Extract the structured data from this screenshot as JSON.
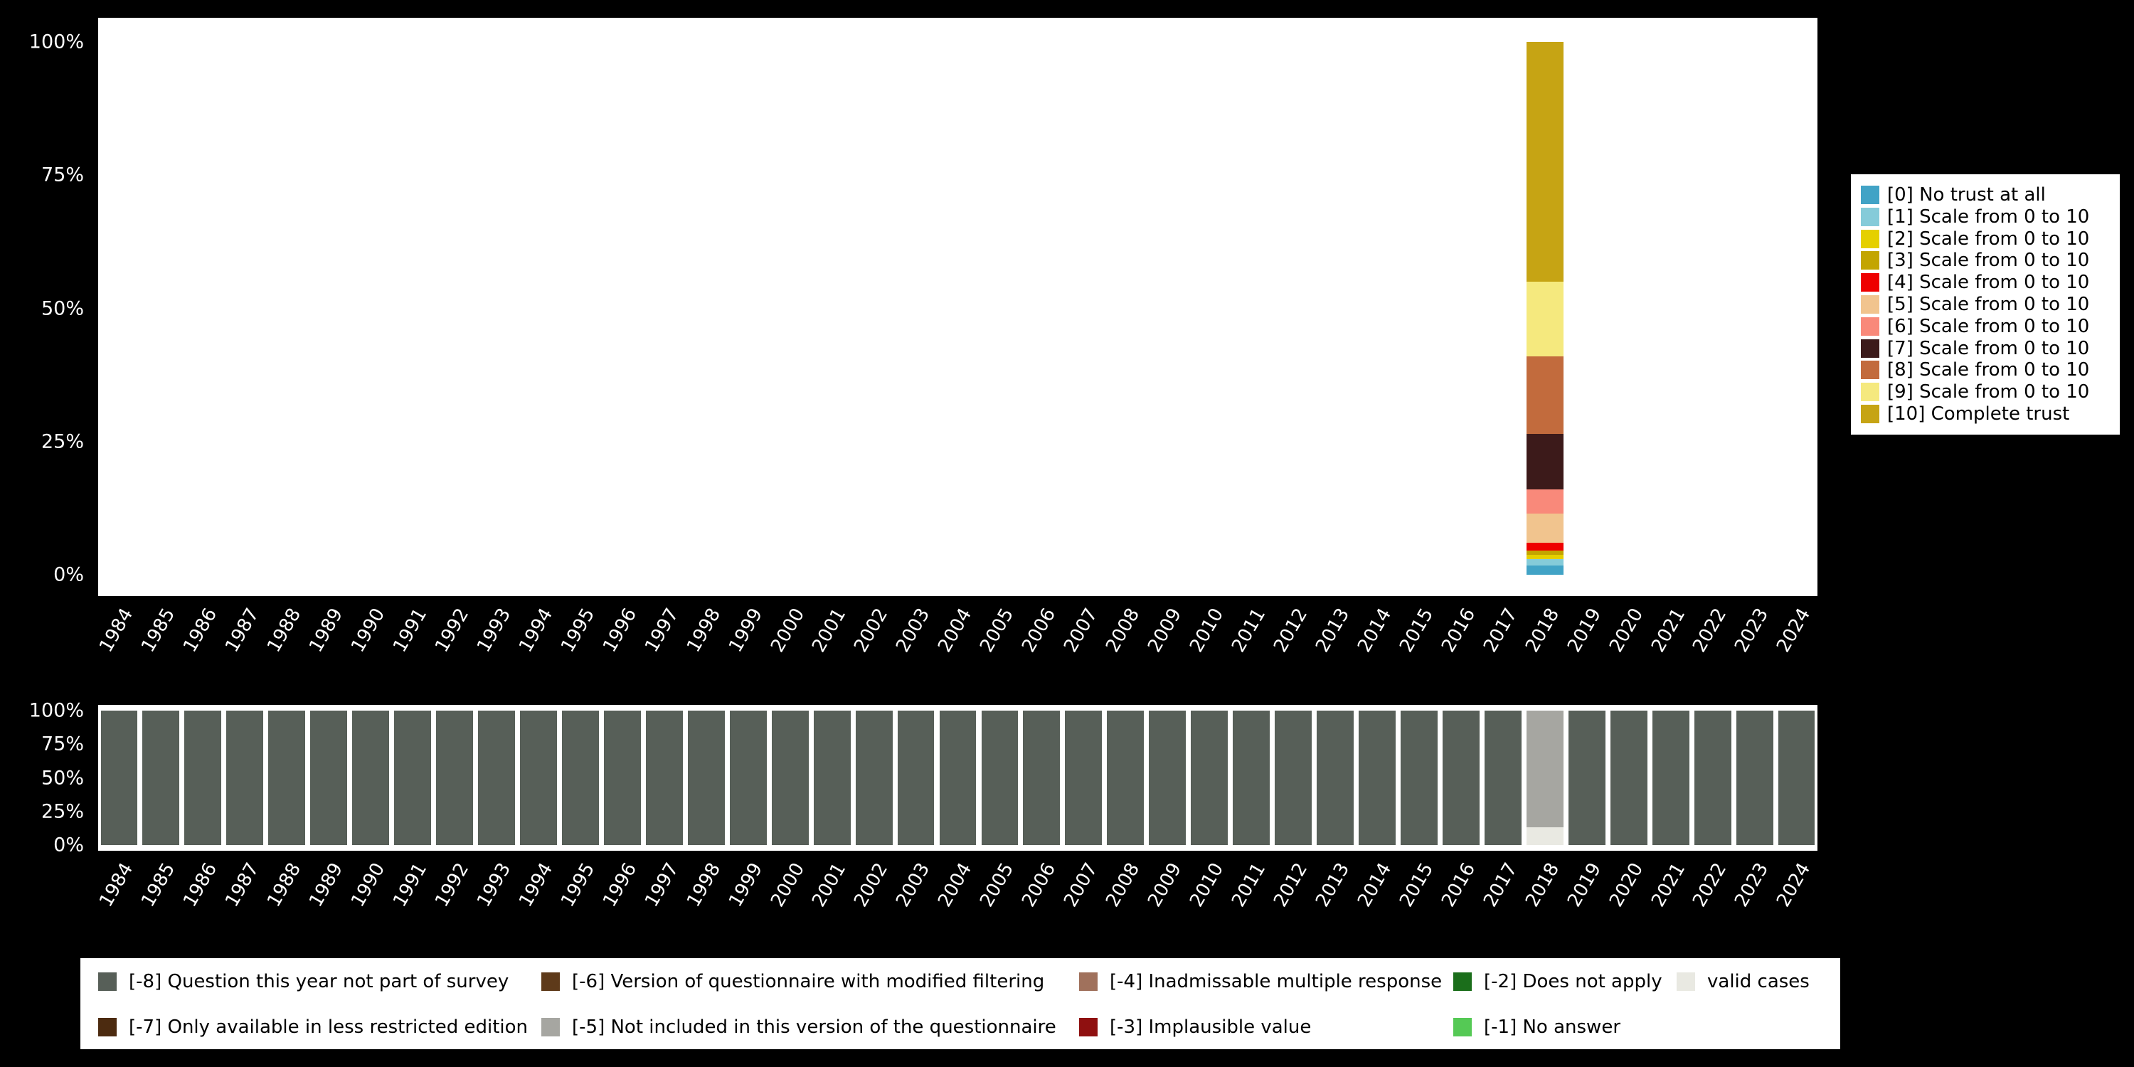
{
  "axes": {
    "y_tick_labels": [
      "100%",
      "75%",
      "50%",
      "25%",
      "0%"
    ],
    "y_tick_values": [
      100,
      75,
      50,
      25,
      0
    ],
    "years": [
      "1984",
      "1985",
      "1986",
      "1987",
      "1988",
      "1989",
      "1990",
      "1991",
      "1992",
      "1993",
      "1994",
      "1995",
      "1996",
      "1997",
      "1998",
      "1999",
      "2000",
      "2001",
      "2002",
      "2003",
      "2004",
      "2005",
      "2006",
      "2007",
      "2008",
      "2009",
      "2010",
      "2011",
      "2012",
      "2013",
      "2014",
      "2015",
      "2016",
      "2017",
      "2018",
      "2019",
      "2020",
      "2021",
      "2022",
      "2023",
      "2024"
    ]
  },
  "chart_data": [
    {
      "id": "trust-distribution-by-year",
      "type": "bar",
      "stacked": true,
      "unit": "%",
      "ylim": [
        0,
        100
      ],
      "x_categories_ref": "axes.years",
      "note": "Only the year 2018 has data; all other years are empty in the top chart",
      "series": [
        {
          "label": "[0] No trust at all",
          "color": "#41A3C6",
          "year_values": {
            "2018": 1.7
          }
        },
        {
          "label": "[1] Scale from 0 to 10",
          "color": "#85CBD9",
          "year_values": {
            "2018": 1.3
          }
        },
        {
          "label": "[2] Scale from 0 to 10",
          "color": "#E5D000",
          "year_values": {
            "2018": 0.7
          }
        },
        {
          "label": "[3] Scale from 0 to 10",
          "color": "#C3A500",
          "year_values": {
            "2018": 0.8
          }
        },
        {
          "label": "[4] Scale from 0 to 10",
          "color": "#EE0000",
          "year_values": {
            "2018": 1.5
          }
        },
        {
          "label": "[5] Scale from 0 to 10",
          "color": "#F1C48E",
          "year_values": {
            "2018": 5.5
          }
        },
        {
          "label": "[6] Scale from 0 to 10",
          "color": "#F9897A",
          "year_values": {
            "2018": 4.5
          }
        },
        {
          "label": "[7] Scale from 0 to 10",
          "color": "#3C1A1A",
          "year_values": {
            "2018": 10.5
          }
        },
        {
          "label": "[8] Scale from 0 to 10",
          "color": "#C26B3D",
          "year_values": {
            "2018": 14.5
          }
        },
        {
          "label": "[9] Scale from 0 to 10",
          "color": "#F5E97E",
          "year_values": {
            "2018": 14.0
          }
        },
        {
          "label": "[10] Complete trust",
          "color": "#C6A414",
          "year_values": {
            "2018": 45.0
          }
        }
      ]
    },
    {
      "id": "valid-vs-missing-by-year",
      "type": "bar",
      "stacked": true,
      "unit": "%",
      "ylim": [
        0,
        100
      ],
      "x_categories_ref": "axes.years",
      "note": "All years 100% [-8] except 2018: 13% valid cases, 87% [-5]",
      "series": [
        {
          "label": "valid cases",
          "color": "#E9E9E2",
          "default": 0,
          "year_values": {
            "2018": 13
          }
        },
        {
          "label": "[-5] Not included in this version of the questionnaire",
          "color": "#A6A6A1",
          "default": 0,
          "year_values": {
            "2018": 87
          }
        },
        {
          "label": "[-8] Question this year not part of survey",
          "color": "#575F58",
          "default": 100,
          "year_values": {
            "2018": 0
          }
        }
      ]
    }
  ],
  "legend_bottom": {
    "items": [
      {
        "label": "[-8] Question this year not part of survey",
        "color": "#575F58",
        "row": 0,
        "col": 0
      },
      {
        "label": "[-7] Only available in less restricted edition",
        "color": "#4C2B10",
        "row": 1,
        "col": 0
      },
      {
        "label": "[-6] Version of questionnaire with modified filtering",
        "color": "#5E3A1A",
        "row": 0,
        "col": 1
      },
      {
        "label": "[-5] Not included in this version of the questionnaire",
        "color": "#A6A6A1",
        "row": 1,
        "col": 1
      },
      {
        "label": "[-4] Inadmissable multiple response",
        "color": "#A0715C",
        "row": 0,
        "col": 2
      },
      {
        "label": "[-3] Implausible value",
        "color": "#8F1010",
        "row": 1,
        "col": 2
      },
      {
        "label": "[-2] Does not apply",
        "color": "#1B6E1B",
        "row": 0,
        "col": 3
      },
      {
        "label": "[-1] No answer",
        "color": "#55C955",
        "row": 1,
        "col": 3
      },
      {
        "label": "valid cases",
        "color": "#E9E9E2",
        "row": 0,
        "col": 4
      }
    ]
  },
  "colors": {
    "page_background": "#000000",
    "panel_background": "#ffffff",
    "axis_text": "#ffffff",
    "legend_text": "#000000"
  }
}
